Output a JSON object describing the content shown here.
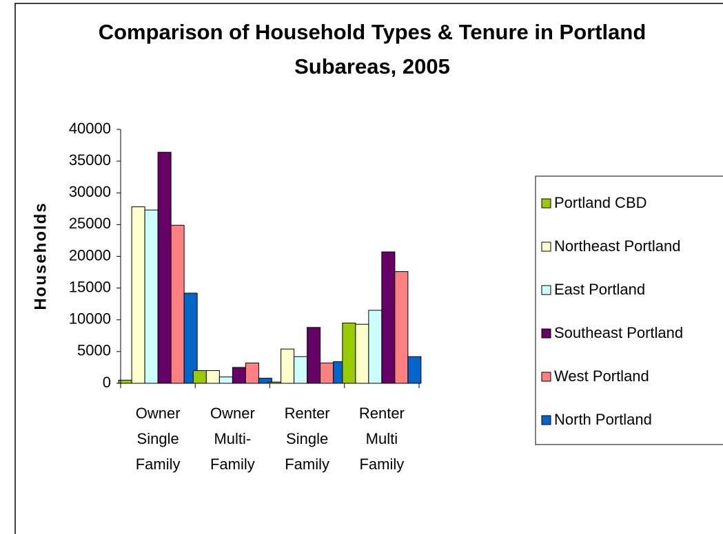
{
  "chart_data": {
    "type": "bar",
    "title": "Comparison of Household Types & Tenure in Portland Subareas, 2005",
    "y_label": "Households",
    "categories": [
      "Owner Single Family",
      "Owner Multi-Family",
      "Renter Single Family",
      "Renter Multi Family"
    ],
    "series": [
      {
        "name": "Portland CBD",
        "color": "#99cc00",
        "values": [
          500,
          2000,
          200,
          9500
        ]
      },
      {
        "name": "Northeast Portland",
        "color": "#ffffcc",
        "values": [
          27800,
          2000,
          5400,
          9300
        ]
      },
      {
        "name": "East Portland",
        "color": "#ccffff",
        "values": [
          27300,
          1000,
          4200,
          11500
        ]
      },
      {
        "name": "Southeast Portland",
        "color": "#660066",
        "values": [
          36400,
          2500,
          8800,
          20700
        ]
      },
      {
        "name": "West Portland",
        "color": "#ff8080",
        "values": [
          24900,
          3200,
          3200,
          17600
        ]
      },
      {
        "name": "North Portland",
        "color": "#0066cc",
        "values": [
          14200,
          800,
          3400,
          4200
        ]
      }
    ],
    "ylim": [
      0,
      40000
    ],
    "yticks": [
      0,
      5000,
      10000,
      15000,
      20000,
      25000,
      30000,
      35000,
      40000
    ],
    "grid": false,
    "legend": "right"
  }
}
